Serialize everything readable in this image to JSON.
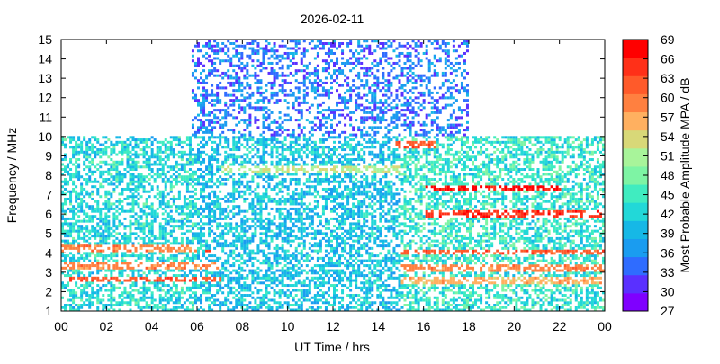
{
  "chart_data": {
    "type": "heatmap",
    "title": "2026-02-11",
    "xlabel": "UT Time / hrs",
    "ylabel": "Frequency / MHz",
    "colorbar_label": "Most Probable Amplitude MPA / dB",
    "xlim": [
      0,
      24
    ],
    "ylim": [
      1,
      15
    ],
    "x_ticks": [
      "00",
      "02",
      "04",
      "06",
      "08",
      "10",
      "12",
      "14",
      "16",
      "18",
      "20",
      "22",
      "00"
    ],
    "y_ticks": [
      "1",
      "2",
      "3",
      "4",
      "5",
      "6",
      "7",
      "8",
      "9",
      "10",
      "11",
      "12",
      "13",
      "14",
      "15"
    ],
    "colorbar_ticks": [
      "27",
      "30",
      "33",
      "36",
      "39",
      "42",
      "45",
      "48",
      "51",
      "54",
      "57",
      "60",
      "63",
      "66",
      "69"
    ],
    "colorbar_range": [
      27,
      69
    ],
    "colorbar_colors": [
      "#7f00ff",
      "#5a30ff",
      "#2f6cff",
      "#1a9cf0",
      "#16b8e6",
      "#22d8d8",
      "#40ecc0",
      "#7ef4a4",
      "#a8f49a",
      "#d8d878",
      "#ffb060",
      "#ff8040",
      "#ff5a2a",
      "#ff3018",
      "#ff0000"
    ],
    "grid": false,
    "regions": [
      {
        "x": [
          0,
          6
        ],
        "y": [
          1,
          10
        ],
        "mpa_typical": 42,
        "note_level": "day-low"
      },
      {
        "x": [
          6,
          8
        ],
        "y": [
          1,
          10
        ],
        "mpa_typical": 40
      },
      {
        "x": [
          5.7,
          18
        ],
        "y": [
          10,
          15
        ],
        "mpa_typical": 34
      },
      {
        "x": [
          8,
          15
        ],
        "y": [
          1,
          10
        ],
        "mpa_typical": 40
      },
      {
        "x": [
          15,
          24
        ],
        "y": [
          1,
          10
        ],
        "mpa_typical": 44
      }
    ],
    "bands": [
      {
        "x": [
          0,
          7
        ],
        "freq": 2.6,
        "mpa": 64
      },
      {
        "x": [
          0,
          7
        ],
        "freq": 3.3,
        "mpa": 60
      },
      {
        "x": [
          0,
          6
        ],
        "freq": 4.2,
        "mpa": 60
      },
      {
        "x": [
          6.3,
          7
        ],
        "freq": 4.0,
        "mpa": 66
      },
      {
        "x": [
          7,
          15
        ],
        "freq": 8.3,
        "mpa": 52
      },
      {
        "x": [
          14.5,
          16.5
        ],
        "freq": 9.5,
        "mpa": 63
      },
      {
        "x": [
          16,
          22
        ],
        "freq": 7.3,
        "mpa": 68
      },
      {
        "x": [
          16,
          24
        ],
        "freq": 6.0,
        "mpa": 66
      },
      {
        "x": [
          15,
          24
        ],
        "freq": 4.0,
        "mpa": 63
      },
      {
        "x": [
          15,
          24
        ],
        "freq": 3.2,
        "mpa": 60
      },
      {
        "x": [
          15,
          24
        ],
        "freq": 2.5,
        "mpa": 57
      }
    ]
  }
}
